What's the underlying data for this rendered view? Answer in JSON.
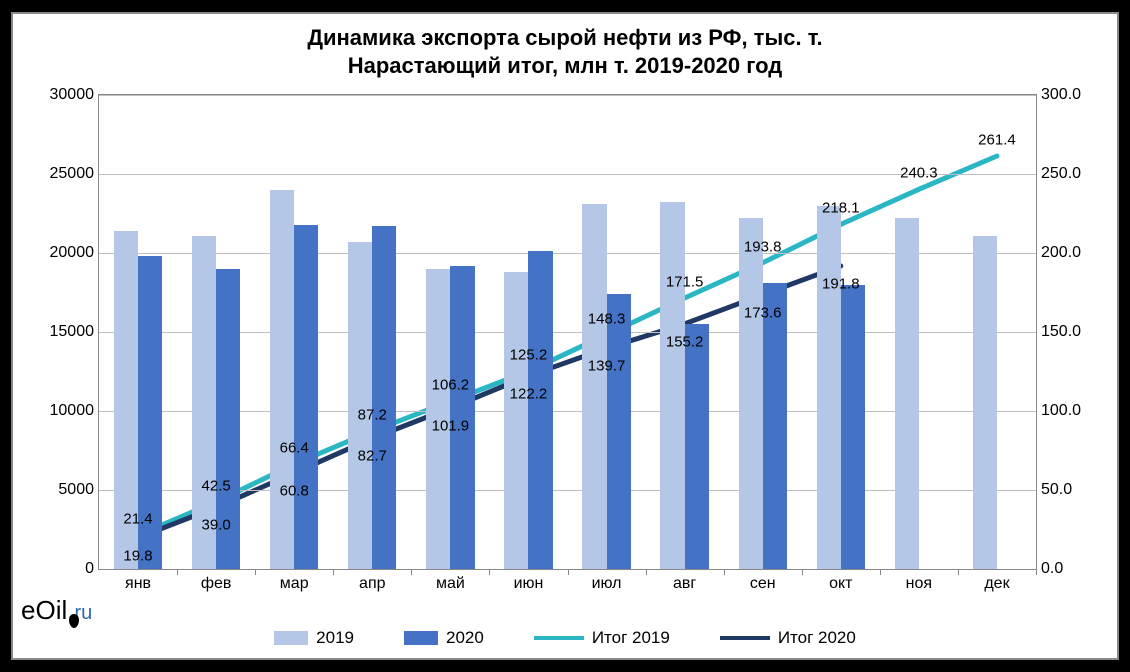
{
  "chart": {
    "type": "bar+line",
    "title_line1": "Динамика экспорта сырой нефти из РФ, тыс. т.",
    "title_line2": "Нарастающий итог, млн т. 2019-2020 год",
    "title_fontsize": 22,
    "background_color": "#ffffff",
    "grid_color": "#bfbfbf",
    "border_color": "#888888",
    "categories": [
      "янв",
      "фев",
      "мар",
      "апр",
      "май",
      "июн",
      "июл",
      "авг",
      "сен",
      "окт",
      "ноя",
      "дек"
    ],
    "left_axis": {
      "min": 0,
      "max": 30000,
      "step": 5000,
      "ticks": [
        "0",
        "5000",
        "10000",
        "15000",
        "20000",
        "25000",
        "30000"
      ],
      "fontsize": 16
    },
    "right_axis": {
      "min": 0,
      "max": 300,
      "step": 50,
      "ticks": [
        "0.0",
        "50.0",
        "100.0",
        "150.0",
        "200.0",
        "250.0",
        "300.0"
      ],
      "fontsize": 16
    },
    "bars_2019": {
      "color": "#b4c7e7",
      "values": [
        21400,
        21100,
        24000,
        20700,
        19000,
        18800,
        23100,
        23200,
        22200,
        23000,
        22200,
        21100
      ]
    },
    "bars_2020": {
      "color": "#4472c4",
      "values": [
        19800,
        19000,
        21800,
        21700,
        19200,
        20100,
        17400,
        15500,
        18100,
        18000,
        null,
        null
      ]
    },
    "bar_group_width": 0.62,
    "line_2019": {
      "color": "#2bb6c4",
      "width": 5,
      "values": [
        21.4,
        42.5,
        66.4,
        87.2,
        106.2,
        125.2,
        148.3,
        171.5,
        193.8,
        218.1,
        240.3,
        261.4
      ],
      "labels": [
        "21.4",
        "42.5",
        "66.4",
        "87.2",
        "106.2",
        "125.2",
        "148.3",
        "171.5",
        "193.8",
        "218.1",
        "240.3",
        "261.4"
      ]
    },
    "line_2020": {
      "color": "#1f3864",
      "width": 5,
      "values": [
        19.8,
        39.0,
        60.8,
        82.7,
        101.9,
        122.2,
        139.7,
        155.2,
        173.6,
        191.8
      ],
      "labels": [
        "19.8",
        "39.0",
        "60.8",
        "82.7",
        "101.9",
        "122.2",
        "139.7",
        "155.2",
        "173.6",
        "191.8"
      ]
    },
    "legend": {
      "items": [
        {
          "type": "swatch",
          "color": "#b4c7e7",
          "label": "2019"
        },
        {
          "type": "swatch",
          "color": "#4472c4",
          "label": "2020"
        },
        {
          "type": "line",
          "color": "#2bb6c4",
          "label": "Итог  2019"
        },
        {
          "type": "line",
          "color": "#1f3864",
          "label": "Итог  2020"
        }
      ],
      "fontsize": 17
    },
    "logo": {
      "text_e": "e",
      "text_oil": "Oil",
      "text_dot": ".",
      "text_ru": "ru",
      "ru_color": "#2b6aa8"
    }
  }
}
